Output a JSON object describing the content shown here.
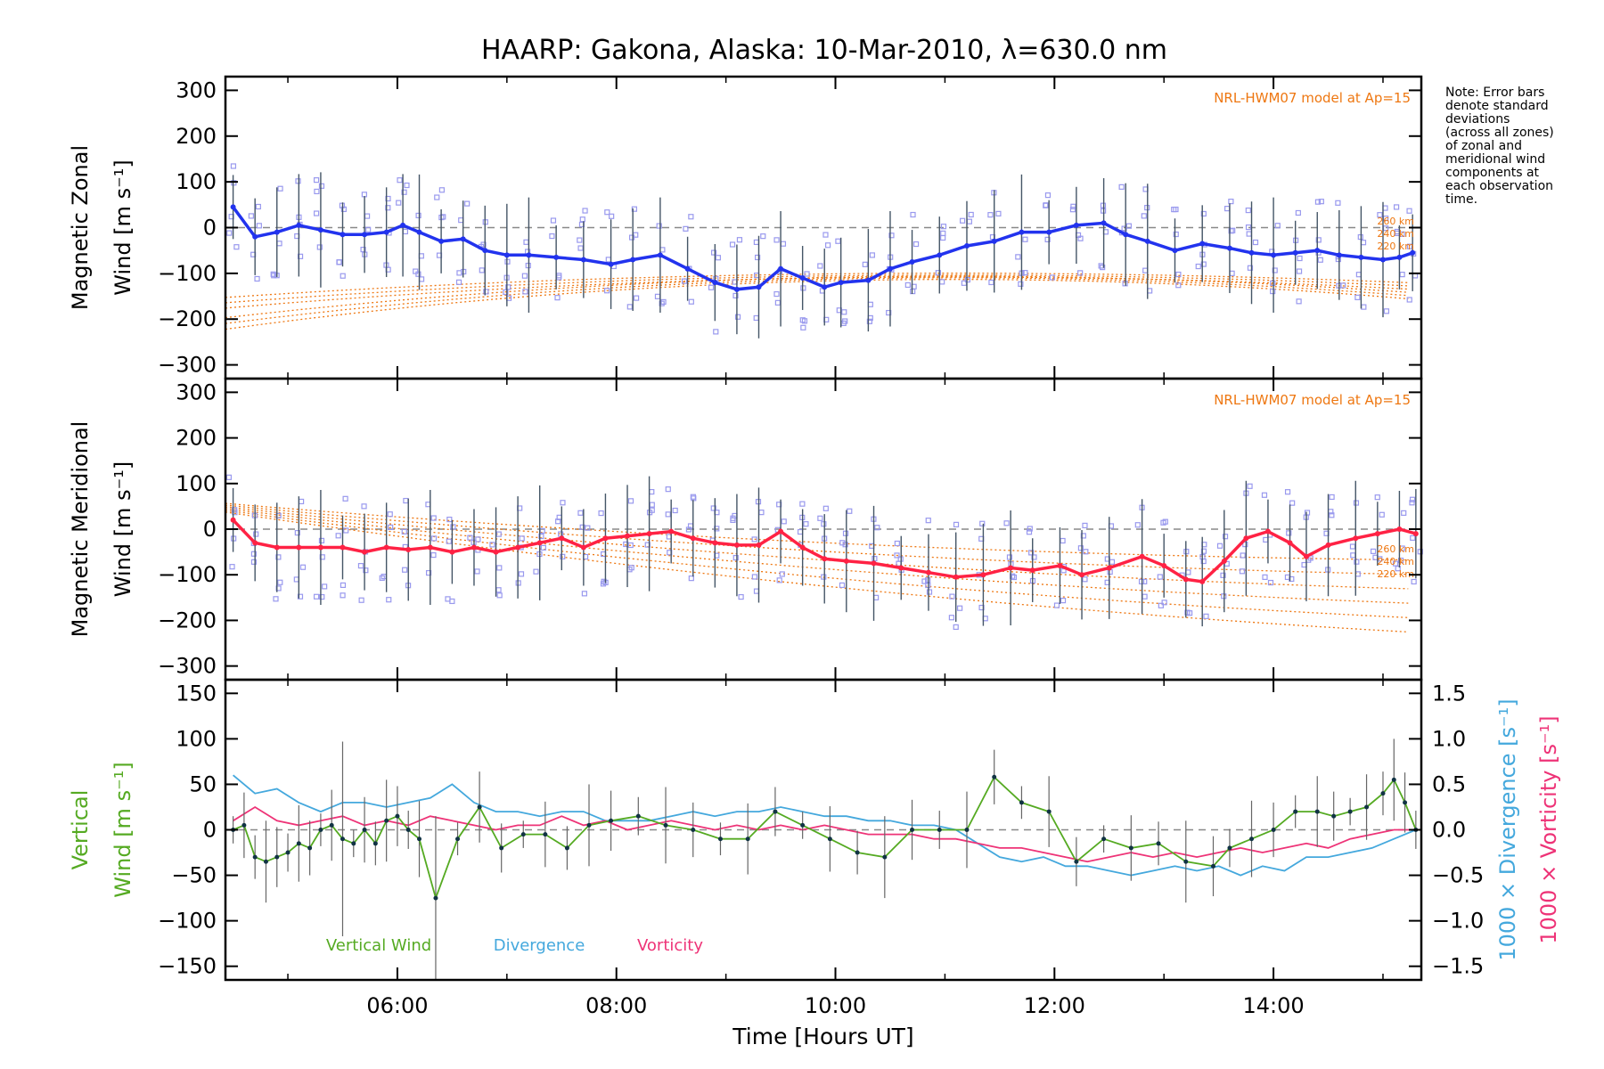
{
  "title": "HAARP: Gakona,  Alaska: 10-Mar-2010, λ=630.0 nm",
  "note": [
    "Note: Error bars",
    "denote standard",
    "deviations",
    "(across all zones)",
    "of zonal and",
    "meridional wind",
    "components at",
    "each observation",
    "time."
  ],
  "colors": {
    "zonal": "#2233ee",
    "meridional": "#ff2244",
    "model": "#ee7711",
    "vertical": "#55aa22",
    "divergence": "#44a8dd",
    "vorticity": "#ee3377",
    "scatter": "#9999ee",
    "errbar": "#666666"
  },
  "chart_data": [
    {
      "type": "line",
      "panel": "zonal",
      "ylabel_line1": "Magnetic Zonal",
      "ylabel_line2": "Wind [m s⁻¹]",
      "ylim": [
        -330,
        330
      ],
      "yticks": [
        300,
        200,
        100,
        0,
        -100,
        -200,
        -300
      ],
      "model_label": "NRL-HWM07 model at Ap=15",
      "model_alt_labels": [
        "260 km",
        "240 km",
        "220 km"
      ],
      "series": [
        {
          "x": [
            4.5,
            4.7,
            4.9,
            5.1,
            5.3,
            5.5,
            5.7,
            5.9,
            6.05,
            6.2,
            6.4,
            6.6,
            6.8,
            7.0,
            7.2,
            7.45,
            7.7,
            7.95,
            8.15,
            8.4,
            8.65,
            8.9,
            9.1,
            9.3,
            9.5,
            9.7,
            9.9,
            10.05,
            10.3,
            10.5,
            10.7,
            10.95,
            11.2,
            11.45,
            11.7,
            11.95,
            12.2,
            12.45,
            12.65,
            12.85,
            13.1,
            13.35,
            13.6,
            13.8,
            14.0,
            14.2,
            14.4,
            14.6,
            14.8,
            15.0,
            15.15,
            15.27
          ],
          "y": [
            45,
            -20,
            -10,
            5,
            -5,
            -15,
            -15,
            -10,
            5,
            -10,
            -30,
            -25,
            -50,
            -60,
            -60,
            -65,
            -70,
            -80,
            -70,
            -60,
            -90,
            -120,
            -135,
            -130,
            -90,
            -110,
            -130,
            -120,
            -115,
            -90,
            -75,
            -60,
            -40,
            -30,
            -10,
            -10,
            5,
            10,
            -15,
            -30,
            -50,
            -35,
            -45,
            -55,
            -60,
            -55,
            -50,
            -60,
            -65,
            -70,
            -65,
            -55
          ]
        }
      ]
    },
    {
      "type": "line",
      "panel": "meridional",
      "ylabel_line1": "Magnetic Meridional",
      "ylabel_line2": "Wind [m s⁻¹]",
      "ylim": [
        -330,
        330
      ],
      "yticks": [
        300,
        200,
        100,
        0,
        -100,
        -200,
        -300
      ],
      "model_label": "NRL-HWM07 model at Ap=15",
      "model_alt_labels": [
        "260 km",
        "240 km",
        "220 km"
      ],
      "series": [
        {
          "x": [
            4.5,
            4.7,
            4.9,
            5.1,
            5.3,
            5.5,
            5.7,
            5.9,
            6.1,
            6.3,
            6.5,
            6.7,
            6.9,
            7.1,
            7.3,
            7.5,
            7.7,
            7.9,
            8.1,
            8.3,
            8.5,
            8.7,
            8.9,
            9.1,
            9.3,
            9.5,
            9.7,
            9.9,
            10.1,
            10.35,
            10.6,
            10.85,
            11.1,
            11.35,
            11.6,
            11.8,
            12.05,
            12.25,
            12.5,
            12.8,
            13.0,
            13.2,
            13.35,
            13.55,
            13.75,
            13.95,
            14.15,
            14.3,
            14.5,
            14.75,
            14.95,
            15.15,
            15.3
          ],
          "y": [
            20,
            -30,
            -40,
            -40,
            -40,
            -40,
            -50,
            -40,
            -45,
            -40,
            -50,
            -40,
            -50,
            -40,
            -30,
            -20,
            -40,
            -20,
            -15,
            -10,
            -5,
            -20,
            -30,
            -35,
            -35,
            -5,
            -40,
            -65,
            -70,
            -75,
            -85,
            -95,
            -105,
            -100,
            -85,
            -90,
            -80,
            -100,
            -85,
            -60,
            -80,
            -110,
            -115,
            -70,
            -20,
            -5,
            -30,
            -60,
            -35,
            -20,
            -10,
            0,
            -10
          ]
        }
      ]
    },
    {
      "type": "line",
      "panel": "vertical",
      "ylabel_line1": "Vertical",
      "ylabel_line2": "Wind [m s⁻¹]",
      "ylim": [
        -165,
        165
      ],
      "yticks": [
        150,
        100,
        50,
        0,
        -50,
        -100,
        -150
      ],
      "y2label1": "1000 × Divergence [s⁻¹]",
      "y2label2": "1000 × Vorticity [s⁻¹]",
      "y2lim": [
        -1.65,
        1.65
      ],
      "y2ticks": [
        "1.5",
        "1.0",
        "0.5",
        "0.0",
        "−0.5",
        "−1.0",
        "−1.5"
      ],
      "xlabel": "Time [Hours UT]",
      "xticks": [
        "06:00",
        "08:00",
        "10:00",
        "12:00",
        "14:00"
      ],
      "xlim": [
        4.43,
        15.35
      ],
      "legend": [
        "Vertical Wind",
        "Divergence",
        "Vorticity"
      ],
      "series": [
        {
          "name": "Vertical Wind",
          "x": [
            4.5,
            4.6,
            4.7,
            4.8,
            4.9,
            5.0,
            5.1,
            5.2,
            5.3,
            5.4,
            5.5,
            5.6,
            5.7,
            5.8,
            5.9,
            6.0,
            6.1,
            6.2,
            6.35,
            6.55,
            6.75,
            6.95,
            7.15,
            7.35,
            7.55,
            7.75,
            7.95,
            8.2,
            8.45,
            8.7,
            8.95,
            9.2,
            9.45,
            9.7,
            9.95,
            10.2,
            10.45,
            10.7,
            10.95,
            11.2,
            11.45,
            11.7,
            11.95,
            12.2,
            12.45,
            12.7,
            12.95,
            13.2,
            13.45,
            13.6,
            13.8,
            14.0,
            14.2,
            14.4,
            14.55,
            14.7,
            14.85,
            15.0,
            15.1,
            15.2,
            15.3
          ],
          "y": [
            0,
            5,
            -30,
            -35,
            -30,
            -25,
            -15,
            -20,
            0,
            5,
            -10,
            -15,
            0,
            -15,
            10,
            15,
            0,
            -10,
            -75,
            -10,
            25,
            -20,
            -5,
            -5,
            -20,
            5,
            10,
            15,
            5,
            0,
            -10,
            -10,
            20,
            5,
            -10,
            -25,
            -30,
            0,
            0,
            0,
            58,
            30,
            20,
            -35,
            -10,
            -20,
            -15,
            -35,
            -40,
            -20,
            -10,
            0,
            20,
            20,
            15,
            20,
            25,
            40,
            55,
            30,
            0
          ]
        },
        {
          "name": "Divergence",
          "x": [
            4.5,
            4.7,
            4.9,
            5.1,
            5.3,
            5.5,
            5.7,
            5.9,
            6.1,
            6.3,
            6.5,
            6.7,
            6.9,
            7.1,
            7.3,
            7.5,
            7.7,
            7.9,
            8.1,
            8.3,
            8.5,
            8.7,
            8.9,
            9.1,
            9.3,
            9.5,
            9.7,
            9.9,
            10.1,
            10.3,
            10.5,
            10.7,
            10.9,
            11.1,
            11.3,
            11.5,
            11.7,
            11.9,
            12.1,
            12.3,
            12.5,
            12.7,
            12.9,
            13.1,
            13.3,
            13.5,
            13.7,
            13.9,
            14.1,
            14.3,
            14.5,
            14.7,
            14.9,
            15.1,
            15.3
          ],
          "y": [
            0.6,
            0.4,
            0.45,
            0.3,
            0.2,
            0.3,
            0.3,
            0.25,
            0.3,
            0.35,
            0.5,
            0.3,
            0.2,
            0.2,
            0.15,
            0.2,
            0.2,
            0.1,
            0.1,
            0.1,
            0.15,
            0.2,
            0.15,
            0.2,
            0.2,
            0.25,
            0.2,
            0.15,
            0.15,
            0.1,
            0.1,
            0.05,
            0.05,
            0.0,
            -0.15,
            -0.3,
            -0.35,
            -0.3,
            -0.4,
            -0.4,
            -0.45,
            -0.5,
            -0.45,
            -0.4,
            -0.45,
            -0.4,
            -0.5,
            -0.4,
            -0.45,
            -0.3,
            -0.3,
            -0.25,
            -0.2,
            -0.1,
            0.0
          ]
        },
        {
          "name": "Vorticity",
          "x": [
            4.5,
            4.7,
            4.9,
            5.1,
            5.3,
            5.5,
            5.7,
            5.9,
            6.1,
            6.3,
            6.5,
            6.7,
            6.9,
            7.1,
            7.3,
            7.5,
            7.7,
            7.9,
            8.1,
            8.3,
            8.5,
            8.7,
            8.9,
            9.1,
            9.3,
            9.5,
            9.7,
            9.9,
            10.1,
            10.3,
            10.5,
            10.7,
            10.9,
            11.1,
            11.3,
            11.5,
            11.7,
            11.9,
            12.1,
            12.3,
            12.5,
            12.7,
            12.9,
            13.1,
            13.3,
            13.5,
            13.7,
            13.9,
            14.1,
            14.3,
            14.5,
            14.7,
            14.9,
            15.1,
            15.3
          ],
          "y": [
            0.1,
            0.25,
            0.1,
            0.05,
            0.1,
            0.15,
            0.05,
            0.1,
            0.05,
            0.15,
            0.1,
            0.05,
            0.0,
            0.05,
            0.05,
            0.15,
            0.05,
            0.1,
            0.0,
            0.05,
            0.1,
            0.05,
            0.0,
            0.05,
            0.0,
            0.05,
            0.0,
            0.05,
            0.0,
            -0.05,
            -0.05,
            -0.05,
            -0.1,
            -0.1,
            -0.15,
            -0.2,
            -0.2,
            -0.25,
            -0.3,
            -0.35,
            -0.3,
            -0.25,
            -0.3,
            -0.25,
            -0.3,
            -0.25,
            -0.2,
            -0.25,
            -0.2,
            -0.15,
            -0.2,
            -0.1,
            -0.05,
            0.0,
            0.0
          ]
        }
      ]
    }
  ]
}
